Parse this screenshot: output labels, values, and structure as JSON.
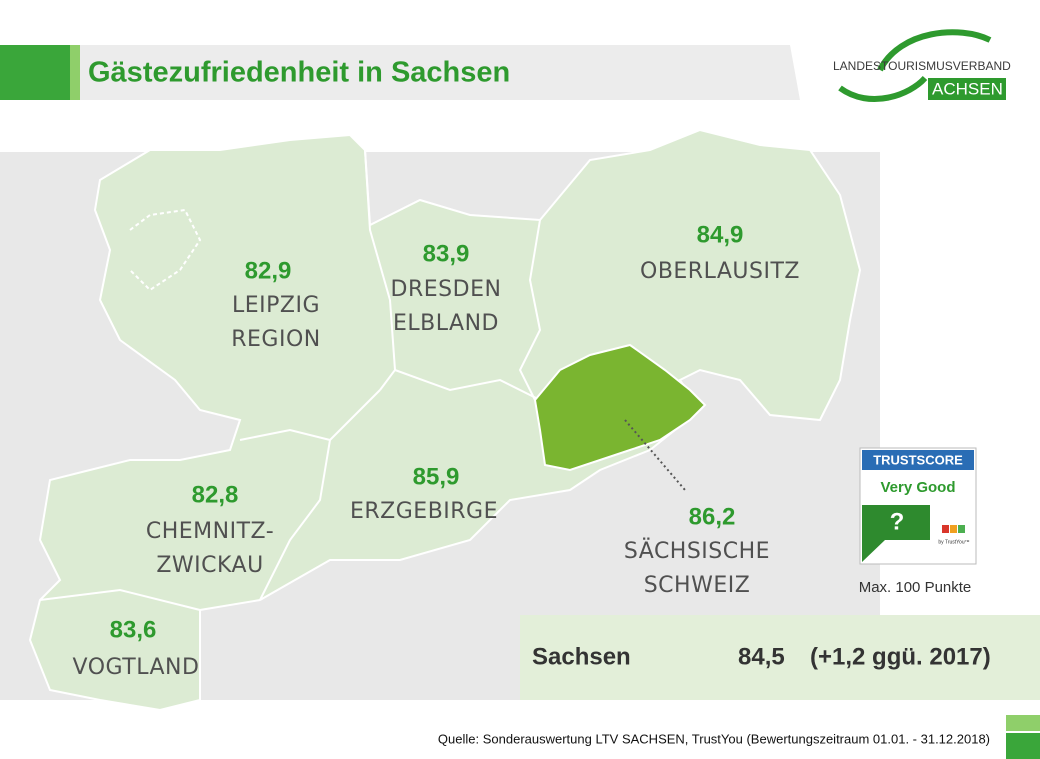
{
  "header": {
    "title": "Gästezufriedenheit in Sachsen",
    "logo_top": "LANDESTOURISMUSVERBAND",
    "logo_bottom": "ACHSEN"
  },
  "regions": [
    {
      "value": "82,9",
      "name": [
        "LEIPZIG",
        "REGION"
      ]
    },
    {
      "value": "83,9",
      "name": [
        "DRESDEN",
        "ELBLAND"
      ]
    },
    {
      "value": "84,9",
      "name": [
        "OBERLAUSITZ"
      ]
    },
    {
      "value": "82,8",
      "name": [
        "CHEMNITZ-",
        "ZWICKAU"
      ]
    },
    {
      "value": "85,9",
      "name": [
        "ERZGEBIRGE"
      ]
    },
    {
      "value": "86,2",
      "name": [
        "SÄCHSISCHE",
        "SCHWEIZ"
      ]
    },
    {
      "value": "83,6",
      "name": [
        "VOGTLAND"
      ]
    }
  ],
  "trustscore": {
    "brand": "TRUSTSCORE",
    "rating": "Very Good",
    "symbol": "?",
    "by": "by TrustYou™",
    "caption": "Max. 100 Punkte"
  },
  "summary": {
    "label": "Sachsen",
    "value": "84,5",
    "change": "(+1,2 ggü. 2017)"
  },
  "source": "Quelle: Sonderauswertung LTV SACHSEN, TrustYou (Bewertungszeitraum 01.01. - 31.12.2018)"
}
